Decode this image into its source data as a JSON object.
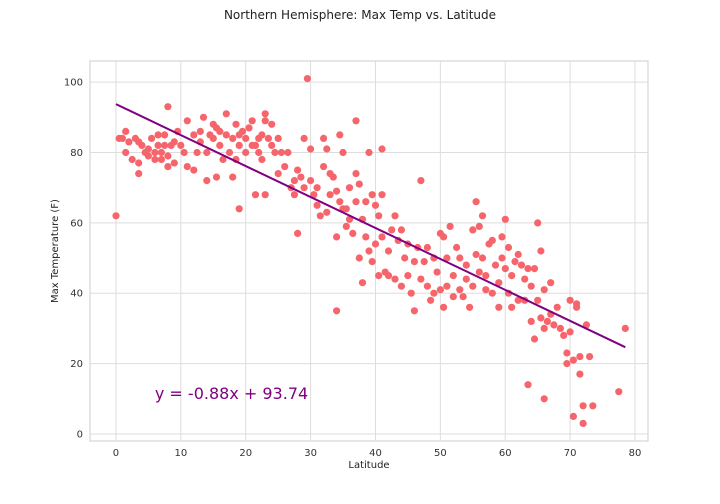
{
  "chart_data": {
    "type": "scatter",
    "title": "Northern Hemisphere: Max Temp vs. Latitude",
    "xlabel": "Latitude",
    "ylabel": "Max Temperature (F)",
    "xlim": [
      -4,
      82
    ],
    "ylim": [
      -2,
      106
    ],
    "xticks": [
      0,
      10,
      20,
      30,
      40,
      50,
      60,
      70,
      80
    ],
    "yticks": [
      0,
      20,
      40,
      60,
      80,
      100
    ],
    "grid": true,
    "marker_color": "#f6656b",
    "line_color": "#800080",
    "regression": {
      "slope": -0.88,
      "intercept": 93.74,
      "x_range": [
        0,
        78.5
      ],
      "equation_text": "y = -0.88x + 93.74",
      "equation_anchor": [
        6,
        10
      ]
    },
    "points": [
      [
        0,
        62
      ],
      [
        0.5,
        84
      ],
      [
        1,
        84
      ],
      [
        1.5,
        86
      ],
      [
        1.5,
        80
      ],
      [
        2,
        83
      ],
      [
        2.5,
        78
      ],
      [
        3,
        84
      ],
      [
        3.5,
        83
      ],
      [
        3.5,
        77
      ],
      [
        3.5,
        74
      ],
      [
        4,
        82
      ],
      [
        4.5,
        80
      ],
      [
        5,
        81
      ],
      [
        5,
        79
      ],
      [
        5.5,
        84
      ],
      [
        6,
        80
      ],
      [
        6,
        78
      ],
      [
        6.5,
        85
      ],
      [
        6.5,
        82
      ],
      [
        7,
        80
      ],
      [
        7,
        78
      ],
      [
        7.5,
        85
      ],
      [
        7.5,
        82
      ],
      [
        8,
        79
      ],
      [
        8,
        76
      ],
      [
        8,
        93
      ],
      [
        8.5,
        82
      ],
      [
        9,
        77
      ],
      [
        9,
        83
      ],
      [
        9.5,
        86
      ],
      [
        10,
        82
      ],
      [
        10.5,
        80
      ],
      [
        11,
        89
      ],
      [
        11,
        76
      ],
      [
        12,
        85
      ],
      [
        12,
        75
      ],
      [
        12.5,
        80
      ],
      [
        13,
        86
      ],
      [
        13,
        83
      ],
      [
        13.5,
        90
      ],
      [
        14,
        80
      ],
      [
        14,
        72
      ],
      [
        14.5,
        85
      ],
      [
        15,
        88
      ],
      [
        15,
        84
      ],
      [
        15.5,
        87
      ],
      [
        15.5,
        73
      ],
      [
        16,
        86
      ],
      [
        16,
        82
      ],
      [
        16.5,
        78
      ],
      [
        17,
        85
      ],
      [
        17,
        91
      ],
      [
        17.5,
        80
      ],
      [
        18,
        84
      ],
      [
        18,
        73
      ],
      [
        18.5,
        88
      ],
      [
        18.5,
        78
      ],
      [
        19,
        85
      ],
      [
        19,
        82
      ],
      [
        19,
        64
      ],
      [
        19.5,
        86
      ],
      [
        20,
        84
      ],
      [
        20,
        80
      ],
      [
        20.5,
        87
      ],
      [
        21,
        89
      ],
      [
        21,
        82
      ],
      [
        21.5,
        82
      ],
      [
        21.5,
        68
      ],
      [
        22,
        84
      ],
      [
        22,
        80
      ],
      [
        22.5,
        85
      ],
      [
        22.5,
        78
      ],
      [
        23,
        91
      ],
      [
        23,
        89
      ],
      [
        23,
        68
      ],
      [
        23.5,
        84
      ],
      [
        24,
        88
      ],
      [
        24,
        82
      ],
      [
        24.5,
        80
      ],
      [
        25,
        84
      ],
      [
        25,
        74
      ],
      [
        25.5,
        80
      ],
      [
        26,
        76
      ],
      [
        26.5,
        80
      ],
      [
        27,
        70
      ],
      [
        27.5,
        72
      ],
      [
        27.5,
        68
      ],
      [
        28,
        75
      ],
      [
        28,
        57
      ],
      [
        28.5,
        73
      ],
      [
        29,
        84
      ],
      [
        29,
        70
      ],
      [
        29.5,
        101
      ],
      [
        30,
        81
      ],
      [
        30,
        72
      ],
      [
        30.5,
        68
      ],
      [
        31,
        70
      ],
      [
        31,
        65
      ],
      [
        31.5,
        62
      ],
      [
        32,
        84
      ],
      [
        32,
        76
      ],
      [
        32.5,
        81
      ],
      [
        32.5,
        63
      ],
      [
        33,
        74
      ],
      [
        33,
        68
      ],
      [
        33.5,
        73
      ],
      [
        34,
        69
      ],
      [
        34,
        56
      ],
      [
        34,
        35
      ],
      [
        34.5,
        85
      ],
      [
        34.5,
        66
      ],
      [
        35,
        80
      ],
      [
        35,
        64
      ],
      [
        35.5,
        64
      ],
      [
        35.5,
        59
      ],
      [
        36,
        70
      ],
      [
        36,
        61
      ],
      [
        36.5,
        57
      ],
      [
        37,
        74
      ],
      [
        37,
        89
      ],
      [
        37,
        66
      ],
      [
        37.5,
        71
      ],
      [
        37.5,
        50
      ],
      [
        38,
        61
      ],
      [
        38,
        43
      ],
      [
        38.5,
        66
      ],
      [
        38.5,
        56
      ],
      [
        39,
        80
      ],
      [
        39,
        52
      ],
      [
        39.5,
        68
      ],
      [
        39.5,
        49
      ],
      [
        40,
        65
      ],
      [
        40,
        54
      ],
      [
        40.5,
        62
      ],
      [
        40.5,
        45
      ],
      [
        41,
        68
      ],
      [
        41,
        56
      ],
      [
        41,
        81
      ],
      [
        41.5,
        46
      ],
      [
        42,
        52
      ],
      [
        42,
        45
      ],
      [
        42.5,
        58
      ],
      [
        43,
        44
      ],
      [
        43,
        62
      ],
      [
        43.5,
        55
      ],
      [
        44,
        58
      ],
      [
        44,
        42
      ],
      [
        44.5,
        50
      ],
      [
        45,
        45
      ],
      [
        45,
        54
      ],
      [
        45.5,
        40
      ],
      [
        46,
        49
      ],
      [
        46,
        35
      ],
      [
        46.5,
        53
      ],
      [
        47,
        72
      ],
      [
        47,
        44
      ],
      [
        47.5,
        49
      ],
      [
        48,
        42
      ],
      [
        48,
        53
      ],
      [
        48.5,
        38
      ],
      [
        49,
        50
      ],
      [
        49,
        40
      ],
      [
        49.5,
        46
      ],
      [
        50,
        57
      ],
      [
        50,
        41
      ],
      [
        50.5,
        56
      ],
      [
        50.5,
        36
      ],
      [
        51,
        50
      ],
      [
        51,
        42
      ],
      [
        51.5,
        59
      ],
      [
        52,
        45
      ],
      [
        52,
        39
      ],
      [
        52.5,
        53
      ],
      [
        53,
        41
      ],
      [
        53,
        50
      ],
      [
        53.5,
        39
      ],
      [
        54,
        48
      ],
      [
        54,
        44
      ],
      [
        54.5,
        36
      ],
      [
        55,
        58
      ],
      [
        55,
        42
      ],
      [
        55.5,
        51
      ],
      [
        55.5,
        66
      ],
      [
        56,
        59
      ],
      [
        56,
        46
      ],
      [
        56.5,
        50
      ],
      [
        56.5,
        62
      ],
      [
        57,
        41
      ],
      [
        57,
        45
      ],
      [
        57.5,
        54
      ],
      [
        58,
        40
      ],
      [
        58,
        55
      ],
      [
        58.5,
        48
      ],
      [
        59,
        36
      ],
      [
        59,
        43
      ],
      [
        59.5,
        50
      ],
      [
        59.5,
        56
      ],
      [
        60,
        61
      ],
      [
        60,
        47
      ],
      [
        60.5,
        40
      ],
      [
        60.5,
        53
      ],
      [
        61,
        45
      ],
      [
        61,
        36
      ],
      [
        61.5,
        49
      ],
      [
        62,
        38
      ],
      [
        62,
        51
      ],
      [
        62.5,
        48
      ],
      [
        63,
        44
      ],
      [
        63,
        38
      ],
      [
        63.5,
        47
      ],
      [
        63.5,
        14
      ],
      [
        64,
        42
      ],
      [
        64,
        32
      ],
      [
        64.5,
        27
      ],
      [
        64.5,
        47
      ],
      [
        65,
        60
      ],
      [
        65,
        38
      ],
      [
        65.5,
        52
      ],
      [
        65.5,
        33
      ],
      [
        66,
        41
      ],
      [
        66,
        30
      ],
      [
        66,
        10
      ],
      [
        66.5,
        32
      ],
      [
        67,
        34
      ],
      [
        67,
        43
      ],
      [
        67.5,
        31
      ],
      [
        68,
        36
      ],
      [
        68.5,
        30
      ],
      [
        69,
        28
      ],
      [
        69.5,
        23
      ],
      [
        69.5,
        20
      ],
      [
        70,
        38
      ],
      [
        70,
        29
      ],
      [
        70.5,
        5
      ],
      [
        70.5,
        21
      ],
      [
        71,
        37
      ],
      [
        71,
        36
      ],
      [
        71.5,
        17
      ],
      [
        71.5,
        22
      ],
      [
        72,
        8
      ],
      [
        72,
        3
      ],
      [
        72.5,
        31
      ],
      [
        73,
        22
      ],
      [
        73.5,
        8
      ],
      [
        77.5,
        12
      ],
      [
        78.5,
        30
      ]
    ]
  }
}
